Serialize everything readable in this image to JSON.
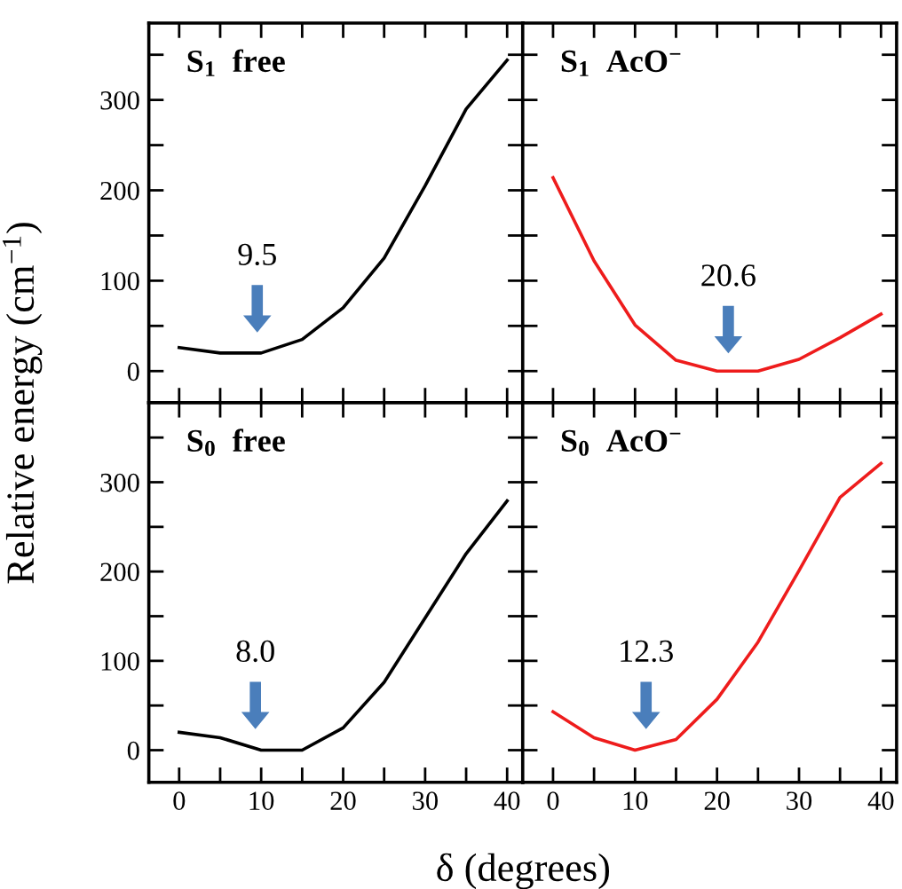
{
  "chart_data": [
    {
      "type": "line",
      "title": "S$_{1}$  free",
      "ylabel": "Relative energy (cm$^{−1}$)",
      "x": [
        0,
        5,
        10,
        15,
        20,
        25,
        30,
        35,
        40
      ],
      "series": [
        {
          "color": "#000000",
          "values": [
            26,
            20,
            20,
            35,
            70,
            125,
            205,
            290,
            344
          ]
        }
      ],
      "annotations": [
        "9.5"
      ],
      "xlim": [
        -3.7,
        41.9
      ],
      "ylim": [
        -35,
        385
      ],
      "xticks": [
        0,
        {
          "value": 5,
          "label": null
        },
        10,
        {
          "value": 15,
          "label": null
        },
        20,
        {
          "value": 25,
          "label": null
        },
        30,
        {
          "value": 35,
          "label": null
        },
        40
      ],
      "yticks": [
        0,
        {
          "value": 50,
          "label": null
        },
        100,
        {
          "value": 150,
          "label": null
        },
        200,
        {
          "value": 250,
          "label": null
        },
        300,
        {
          "value": 350,
          "label": null
        }
      ],
      "tick_labels": "y",
      "grid": false,
      "legend": false
    },
    {
      "type": "line",
      "title": "S$_{1}$  AcO$^{−}$",
      "x": [
        0,
        5,
        10,
        15,
        20,
        25,
        30,
        35,
        40
      ],
      "series": [
        {
          "color": "#ee1c1c",
          "values": [
            214,
            122,
            51,
            12,
            0,
            0,
            13,
            37,
            63
          ]
        }
      ],
      "annotations": [
        "20.6"
      ],
      "xlim": [
        -3.7,
        41.9
      ],
      "ylim": [
        -35,
        385
      ],
      "xticks": [
        0,
        {
          "value": 5,
          "label": null
        },
        10,
        {
          "value": 15,
          "label": null
        },
        20,
        {
          "value": 25,
          "label": null
        },
        30,
        {
          "value": 35,
          "label": null
        },
        40
      ],
      "yticks": [
        0,
        {
          "value": 50,
          "label": null
        },
        100,
        {
          "value": 150,
          "label": null
        },
        200,
        {
          "value": 250,
          "label": null
        },
        300,
        {
          "value": 350,
          "label": null
        }
      ],
      "tick_labels": false,
      "grid": false,
      "legend": false
    },
    {
      "type": "line",
      "title": "S$_{0}$  free",
      "x": [
        0,
        5,
        10,
        15,
        20,
        25,
        30,
        35,
        40
      ],
      "series": [
        {
          "color": "#000000",
          "values": [
            20,
            14,
            0,
            0,
            25,
            76,
            148,
            220,
            279
          ]
        }
      ],
      "annotations": [
        "8.0"
      ],
      "xlim": [
        -3.7,
        41.9
      ],
      "ylim": [
        -36,
        389
      ],
      "xticks": [
        0,
        {
          "value": 5,
          "label": null
        },
        10,
        {
          "value": 15,
          "label": null
        },
        20,
        {
          "value": 25,
          "label": null
        },
        30,
        {
          "value": 35,
          "label": null
        },
        40
      ],
      "yticks": [
        0,
        {
          "value": 50,
          "label": null
        },
        100,
        {
          "value": 150,
          "label": null
        },
        200,
        {
          "value": 250,
          "label": null
        },
        300,
        {
          "value": 350,
          "label": null
        }
      ],
      "grid": false,
      "legend": false
    },
    {
      "type": "line",
      "title": "S$_{0}$  AcO$^{−}$",
      "xlabel": "δ (degrees)",
      "x": [
        0,
        5,
        10,
        15,
        20,
        25,
        30,
        35,
        40
      ],
      "series": [
        {
          "color": "#ee1c1c",
          "values": [
            43,
            14,
            0,
            12,
            57,
            121,
            201,
            283,
            321
          ]
        }
      ],
      "annotations": [
        "12.3"
      ],
      "xlim": [
        -3.7,
        41.9
      ],
      "ylim": [
        -36,
        389
      ],
      "xticks": [
        0,
        {
          "value": 5,
          "label": null
        },
        10,
        {
          "value": 15,
          "label": null
        },
        20,
        {
          "value": 25,
          "label": null
        },
        30,
        {
          "value": 35,
          "label": null
        },
        40
      ],
      "yticks": [
        0,
        {
          "value": 50,
          "label": null
        },
        100,
        {
          "value": 150,
          "label": null
        },
        200,
        {
          "value": 250,
          "label": null
        },
        300,
        {
          "value": 350,
          "label": null
        }
      ],
      "tick_labels": "x",
      "grid": false,
      "legend": false
    }
  ]
}
